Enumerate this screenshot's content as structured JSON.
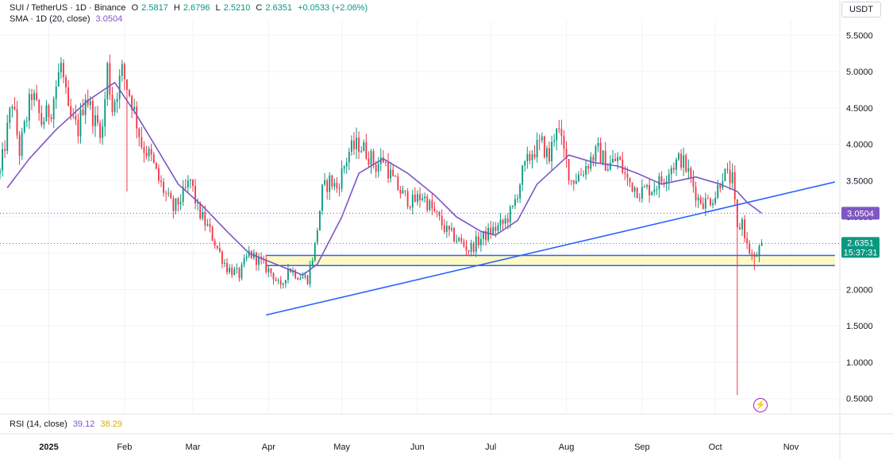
{
  "legend": {
    "symbol": "SUI / TetherUS · 1D · Binance",
    "o_label": "O",
    "o": "2.5817",
    "h_label": "H",
    "h": "2.6796",
    "l_label": "L",
    "l": "2.5210",
    "c_label": "C",
    "c": "2.6351",
    "change": "+0.0533 (+2.06%)",
    "sma_label": "SMA · 1D (20, close)",
    "sma_value": "3.0504"
  },
  "rsi": {
    "label": "RSI (14, close)",
    "value1": "39.12",
    "value2": "38.29"
  },
  "currency": "USDT",
  "price_labels": {
    "sma": "3.0504",
    "last": "2.6351",
    "countdown": "15:37:31"
  },
  "colors": {
    "up": "#089981",
    "down": "#f23645",
    "sma": "#7e57c2",
    "trendline": "#2962ff",
    "zone_fill": "#fff9c4",
    "grid": "#f0f3fa"
  },
  "chart_data": {
    "type": "candlestick",
    "y_ticks": [
      "5.5000",
      "5.0000",
      "4.5000",
      "4.0000",
      "3.5000",
      "3.0000",
      "2.5000",
      "2.0000",
      "1.5000",
      "1.0000",
      "0.5000"
    ],
    "ylim": [
      0.3,
      5.7
    ],
    "x_ticks": [
      "2025",
      "Feb",
      "Mar",
      "Apr",
      "May",
      "Jun",
      "Jul",
      "Aug",
      "Sep",
      "Oct",
      "Nov"
    ],
    "x_tick_dates": [
      "2025-01-01",
      "2025-02-01",
      "2025-03-01",
      "2025-04-01",
      "2025-05-01",
      "2025-06-01",
      "2025-07-01",
      "2025-08-01",
      "2025-09-01",
      "2025-10-01",
      "2025-11-01"
    ],
    "xlim": [
      "2024-12-12",
      "2025-11-21"
    ],
    "anchors": [
      [
        "2024-12-12",
        3.6
      ],
      [
        "2024-12-17",
        4.6
      ],
      [
        "2024-12-20",
        3.9
      ],
      [
        "2024-12-25",
        4.7
      ],
      [
        "2024-12-29",
        4.3
      ],
      [
        "2025-01-02",
        4.5
      ],
      [
        "2025-01-06",
        5.1
      ],
      [
        "2025-01-09",
        4.4
      ],
      [
        "2025-01-13",
        4.2
      ],
      [
        "2025-01-16",
        4.7
      ],
      [
        "2025-01-20",
        4.3
      ],
      [
        "2025-01-23",
        4.2
      ],
      [
        "2025-01-25",
        5.05
      ],
      [
        "2025-01-27",
        4.5
      ],
      [
        "2025-01-31",
        5.0
      ],
      [
        "2025-02-04",
        4.6
      ],
      [
        "2025-02-08",
        4.0
      ],
      [
        "2025-02-12",
        3.8
      ],
      [
        "2025-02-15",
        3.5
      ],
      [
        "2025-02-18",
        3.3
      ],
      [
        "2025-02-21",
        3.1
      ],
      [
        "2025-02-25",
        3.3
      ],
      [
        "2025-02-28",
        3.5
      ],
      [
        "2025-03-03",
        3.1
      ],
      [
        "2025-03-08",
        2.8
      ],
      [
        "2025-03-12",
        2.5
      ],
      [
        "2025-03-15",
        2.3
      ],
      [
        "2025-03-20",
        2.2
      ],
      [
        "2025-03-24",
        2.5
      ],
      [
        "2025-03-28",
        2.4
      ],
      [
        "2025-04-03",
        2.2
      ],
      [
        "2025-04-06",
        2.0
      ],
      [
        "2025-04-09",
        2.3
      ],
      [
        "2025-04-13",
        2.2
      ],
      [
        "2025-04-17",
        2.15
      ],
      [
        "2025-04-20",
        2.6
      ],
      [
        "2025-04-23",
        3.35
      ],
      [
        "2025-04-26",
        3.5
      ],
      [
        "2025-04-29",
        3.4
      ],
      [
        "2025-05-04",
        3.9
      ],
      [
        "2025-05-08",
        4.0
      ],
      [
        "2025-05-11",
        3.9
      ],
      [
        "2025-05-15",
        3.7
      ],
      [
        "2025-05-18",
        3.8
      ],
      [
        "2025-05-22",
        3.5
      ],
      [
        "2025-05-26",
        3.3
      ],
      [
        "2025-05-30",
        3.2
      ],
      [
        "2025-06-03",
        3.3
      ],
      [
        "2025-06-08",
        3.05
      ],
      [
        "2025-06-13",
        2.8
      ],
      [
        "2025-06-17",
        2.7
      ],
      [
        "2025-06-22",
        2.55
      ],
      [
        "2025-06-27",
        2.7
      ],
      [
        "2025-07-01",
        2.8
      ],
      [
        "2025-07-06",
        2.9
      ],
      [
        "2025-07-10",
        3.1
      ],
      [
        "2025-07-14",
        3.6
      ],
      [
        "2025-07-18",
        3.9
      ],
      [
        "2025-07-22",
        4.0
      ],
      [
        "2025-07-25",
        3.8
      ],
      [
        "2025-07-28",
        4.3
      ],
      [
        "2025-07-30",
        4.0
      ],
      [
        "2025-08-03",
        3.5
      ],
      [
        "2025-08-07",
        3.6
      ],
      [
        "2025-08-11",
        3.8
      ],
      [
        "2025-08-14",
        3.9
      ],
      [
        "2025-08-18",
        3.7
      ],
      [
        "2025-08-22",
        3.8
      ],
      [
        "2025-08-26",
        3.5
      ],
      [
        "2025-08-31",
        3.35
      ],
      [
        "2025-09-05",
        3.4
      ],
      [
        "2025-09-09",
        3.5
      ],
      [
        "2025-09-13",
        3.7
      ],
      [
        "2025-09-17",
        3.8
      ],
      [
        "2025-09-20",
        3.6
      ],
      [
        "2025-09-24",
        3.25
      ],
      [
        "2025-09-27",
        3.2
      ],
      [
        "2025-10-01",
        3.3
      ],
      [
        "2025-10-04",
        3.6
      ],
      [
        "2025-10-08",
        3.5
      ],
      [
        "2025-10-10",
        2.8
      ],
      [
        "2025-10-12",
        2.95
      ],
      [
        "2025-10-14",
        2.6
      ],
      [
        "2025-10-17",
        2.4
      ],
      [
        "2025-10-20",
        2.6351
      ]
    ],
    "extra_wicks": [
      [
        "2025-02-02",
        4.25,
        3.35
      ],
      [
        "2025-10-10",
        3.05,
        0.55
      ],
      [
        "2025-10-17",
        2.5,
        2.27
      ]
    ],
    "sma": [
      [
        "2024-12-15",
        3.4
      ],
      [
        "2024-12-24",
        3.8
      ],
      [
        "2025-01-04",
        4.2
      ],
      [
        "2025-01-17",
        4.6
      ],
      [
        "2025-01-28",
        4.85
      ],
      [
        "2025-02-06",
        4.4
      ],
      [
        "2025-02-15",
        3.9
      ],
      [
        "2025-02-23",
        3.45
      ],
      [
        "2025-03-05",
        3.15
      ],
      [
        "2025-03-15",
        2.8
      ],
      [
        "2025-03-24",
        2.5
      ],
      [
        "2025-04-04",
        2.35
      ],
      [
        "2025-04-15",
        2.2
      ],
      [
        "2025-04-21",
        2.35
      ],
      [
        "2025-05-01",
        3.0
      ],
      [
        "2025-05-08",
        3.6
      ],
      [
        "2025-05-18",
        3.8
      ],
      [
        "2025-05-28",
        3.6
      ],
      [
        "2025-06-08",
        3.3
      ],
      [
        "2025-06-17",
        3.0
      ],
      [
        "2025-06-27",
        2.8
      ],
      [
        "2025-07-03",
        2.75
      ],
      [
        "2025-07-12",
        2.95
      ],
      [
        "2025-07-20",
        3.45
      ],
      [
        "2025-08-02",
        3.85
      ],
      [
        "2025-08-12",
        3.75
      ],
      [
        "2025-08-22",
        3.7
      ],
      [
        "2025-08-30",
        3.6
      ],
      [
        "2025-09-09",
        3.45
      ],
      [
        "2025-09-16",
        3.5
      ],
      [
        "2025-09-23",
        3.55
      ],
      [
        "2025-10-03",
        3.45
      ],
      [
        "2025-10-10",
        3.35
      ],
      [
        "2025-10-14",
        3.2
      ],
      [
        "2025-10-20",
        3.0504
      ]
    ],
    "trendline": [
      [
        "2025-03-31",
        1.65
      ],
      [
        "2025-11-19",
        3.48
      ]
    ],
    "zone": {
      "from": "2025-03-31",
      "to": "2025-11-19",
      "top": 2.47,
      "bottom": 2.33
    },
    "sma_last": 3.0504,
    "last_close": 2.6351
  }
}
